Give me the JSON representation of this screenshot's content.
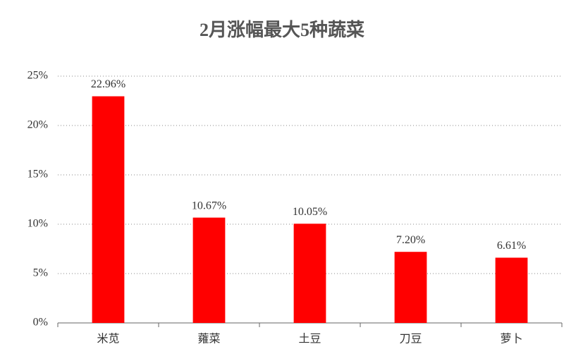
{
  "chart_data": {
    "type": "bar",
    "title": "2月涨幅最大5种蔬菜",
    "categories": [
      "米苋",
      "蕹菜",
      "土豆",
      "刀豆",
      "萝卜"
    ],
    "values": [
      22.96,
      10.67,
      10.05,
      7.2,
      6.61
    ],
    "value_labels": [
      "22.96%",
      "10.67%",
      "10.05%",
      "7.20%",
      "6.61%"
    ],
    "color": "#ff0000",
    "ylim": [
      0,
      25
    ],
    "yticks": [
      {
        "value": 0,
        "label": "0%"
      },
      {
        "value": 5,
        "label": "5%"
      },
      {
        "value": 10,
        "label": "10%"
      },
      {
        "value": 15,
        "label": "15%"
      },
      {
        "value": 20,
        "label": "20%"
      },
      {
        "value": 25,
        "label": "25%"
      }
    ],
    "grid": true
  }
}
